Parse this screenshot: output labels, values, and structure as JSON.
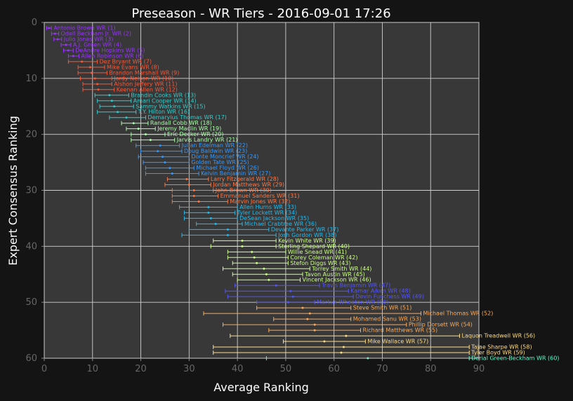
{
  "chart_data": {
    "type": "scatter",
    "title": "Preseason - WR Tiers - 2016-09-01 17:26",
    "xlabel": "Average Ranking",
    "ylabel": "Expert Consensus Ranking",
    "xlim": [
      0,
      90
    ],
    "ylim": [
      60,
      0
    ],
    "xticks": [
      "0",
      "10",
      "20",
      "30",
      "40",
      "50",
      "60",
      "70",
      "80",
      "90"
    ],
    "yticks": [
      "0",
      "10",
      "20",
      "30",
      "40",
      "50",
      "60"
    ],
    "grid": true,
    "tier_colors": {
      "1": "#9933ff",
      "2": "#ff5533",
      "3": "#33cccc",
      "4": "#aaffaa",
      "5": "#3399ff",
      "6": "#ff7744",
      "7": "#22bbee",
      "8": "#ccff88",
      "9": "#5555ff",
      "10": "#ffaa55",
      "11": "#ffdd88",
      "12": "#55ffcc"
    },
    "points": [
      {
        "label": "Antonio Brown WR (1)",
        "tier": 1,
        "x": 1.0,
        "lo": 0.5,
        "hi": 1.5
      },
      {
        "label": "Odell Beckham Jr. WR (2)",
        "tier": 1,
        "x": 2.2,
        "lo": 1.5,
        "hi": 3.0
      },
      {
        "label": "Julio Jones WR (3)",
        "tier": 1,
        "x": 2.8,
        "lo": 2.0,
        "hi": 3.6
      },
      {
        "label": "A.J. Green WR (4)",
        "tier": 1,
        "x": 4.5,
        "lo": 3.5,
        "hi": 5.5
      },
      {
        "label": "DeAndre Hopkins WR (5)",
        "tier": 1,
        "x": 5.0,
        "lo": 4.0,
        "hi": 6.0
      },
      {
        "label": "Allen Robinson WR (6)",
        "tier": 1,
        "x": 6.0,
        "lo": 5.0,
        "hi": 7.2
      },
      {
        "label": "Dez Bryant WR (7)",
        "tier": 2,
        "x": 7.8,
        "lo": 5.0,
        "hi": 11.0
      },
      {
        "label": "Mike Evans WR (8)",
        "tier": 2,
        "x": 9.5,
        "lo": 7.0,
        "hi": 12.5
      },
      {
        "label": "Brandon Marshall WR (9)",
        "tier": 2,
        "x": 9.8,
        "lo": 7.0,
        "hi": 13.0
      },
      {
        "label": "Jordy Nelson WR (10)",
        "tier": 2,
        "x": 10.5,
        "lo": 7.5,
        "hi": 14.0
      },
      {
        "label": "Alshon Jeffery WR (11)",
        "tier": 2,
        "x": 11.0,
        "lo": 8.0,
        "hi": 14.0
      },
      {
        "label": "Keenan Allen WR (12)",
        "tier": 2,
        "x": 11.2,
        "lo": 8.0,
        "hi": 14.5
      },
      {
        "label": "Brandin Cooks WR (13)",
        "tier": 3,
        "x": 13.5,
        "lo": 10.5,
        "hi": 17.5
      },
      {
        "label": "Amari Cooper WR (14)",
        "tier": 3,
        "x": 14.0,
        "lo": 11.0,
        "hi": 18.0
      },
      {
        "label": "Sammy Watkins WR (15)",
        "tier": 3,
        "x": 14.5,
        "lo": 11.5,
        "hi": 18.5
      },
      {
        "label": "T.Y. Hilton WR (16)",
        "tier": 3,
        "x": 15.2,
        "lo": 11.0,
        "hi": 19.0
      },
      {
        "label": "Demaryius Thomas WR (17)",
        "tier": 3,
        "x": 17.0,
        "lo": 13.5,
        "hi": 21.0
      },
      {
        "label": "Randall Cobb WR (18)",
        "tier": 4,
        "x": 18.5,
        "lo": 16.0,
        "hi": 21.5
      },
      {
        "label": "Jeremy Maclin WR (19)",
        "tier": 4,
        "x": 19.5,
        "lo": 17.0,
        "hi": 23.0
      },
      {
        "label": "Eric Decker WR (20)",
        "tier": 4,
        "x": 21.0,
        "lo": 18.0,
        "hi": 25.0
      },
      {
        "label": "Jarvis Landry WR (21)",
        "tier": 4,
        "x": 22.0,
        "lo": 18.0,
        "hi": 27.0
      },
      {
        "label": "Julian Edelman WR (22)",
        "tier": 5,
        "x": 24.0,
        "lo": 19.0,
        "hi": 28.0
      },
      {
        "label": "Doug Baldwin WR (23)",
        "tier": 5,
        "x": 23.5,
        "lo": 20.0,
        "hi": 28.5
      },
      {
        "label": "Donte Moncrief WR (24)",
        "tier": 5,
        "x": 24.5,
        "lo": 19.5,
        "hi": 30.0
      },
      {
        "label": "Golden Tate WR (25)",
        "tier": 5,
        "x": 25.0,
        "lo": 20.5,
        "hi": 30.0
      },
      {
        "label": "Michael Floyd WR (26)",
        "tier": 5,
        "x": 26.0,
        "lo": 21.0,
        "hi": 31.0
      },
      {
        "label": "Kelvin Benjamin WR (27)",
        "tier": 5,
        "x": 26.5,
        "lo": 21.0,
        "hi": 32.0
      },
      {
        "label": "Larry Fitzgerald WR (28)",
        "tier": 6,
        "x": 29.5,
        "lo": 25.5,
        "hi": 34.0
      },
      {
        "label": "Jordan Matthews WR (29)",
        "tier": 6,
        "x": 30.0,
        "lo": 25.0,
        "hi": 34.5
      },
      {
        "label": "John Brown WR (30)",
        "tier": 6,
        "x": 31.0,
        "lo": 26.5,
        "hi": 35.0
      },
      {
        "label": "Emmanuel Sanders WR (31)",
        "tier": 6,
        "x": 31.0,
        "lo": 26.5,
        "hi": 36.0
      },
      {
        "label": "Marvin Jones WR (32)",
        "tier": 6,
        "x": 32.0,
        "lo": 26.5,
        "hi": 38.0
      },
      {
        "label": "Allen Hurns WR (33)",
        "tier": 7,
        "x": 34.0,
        "lo": 28.0,
        "hi": 40.0
      },
      {
        "label": "Tyler Lockett WR (34)",
        "tier": 7,
        "x": 34.0,
        "lo": 29.0,
        "hi": 39.5
      },
      {
        "label": "DeSean Jackson WR (35)",
        "tier": 7,
        "x": 34.5,
        "lo": 29.0,
        "hi": 40.0
      },
      {
        "label": "Michael Crabtree WR (36)",
        "tier": 7,
        "x": 35.5,
        "lo": 31.5,
        "hi": 41.0
      },
      {
        "label": "Devante Parker WR (37)",
        "tier": 7,
        "x": 38.0,
        "lo": 30.0,
        "hi": 46.5
      },
      {
        "label": "Josh Gordon WR (38)",
        "tier": 7,
        "x": 38.0,
        "lo": 28.5,
        "hi": 48.0
      },
      {
        "label": "Kevin White WR (39)",
        "tier": 8,
        "x": 41.0,
        "lo": 35.0,
        "hi": 48.0
      },
      {
        "label": "Sterling Shepard WR (40)",
        "tier": 8,
        "x": 41.0,
        "lo": 34.5,
        "hi": 48.0
      },
      {
        "label": "Willie Snead WR (41)",
        "tier": 8,
        "x": 43.0,
        "lo": 38.0,
        "hi": 50.0
      },
      {
        "label": "Corey Coleman WR (42)",
        "tier": 8,
        "x": 43.5,
        "lo": 38.0,
        "hi": 50.5
      },
      {
        "label": "Stefon Diggs WR (43)",
        "tier": 8,
        "x": 44.0,
        "lo": 39.0,
        "hi": 50.5
      },
      {
        "label": "Torrey Smith WR (44)",
        "tier": 8,
        "x": 45.5,
        "lo": 37.0,
        "hi": 55.0
      },
      {
        "label": "Tavon Austin WR (45)",
        "tier": 8,
        "x": 46.0,
        "lo": 39.0,
        "hi": 53.5
      },
      {
        "label": "Vincent Jackson WR (46)",
        "tier": 8,
        "x": 46.5,
        "lo": 40.0,
        "hi": 53.0
      },
      {
        "label": "Travis Benjamin WR (47)",
        "tier": 9,
        "x": 48.0,
        "lo": 39.5,
        "hi": 57.0
      },
      {
        "label": "Kamar Aiken WR (48)",
        "tier": 9,
        "x": 51.0,
        "lo": 37.5,
        "hi": 63.0
      },
      {
        "label": "Devin Funchess WR (49)",
        "tier": 9,
        "x": 51.5,
        "lo": 38.0,
        "hi": 64.0
      },
      {
        "label": "Markus Wheaton WR (50)",
        "tier": 9,
        "x": 50.5,
        "lo": 44.0,
        "hi": 56.0
      },
      {
        "label": "Steve Smith WR (51)",
        "tier": 10,
        "x": 53.5,
        "lo": 44.0,
        "hi": 63.5
      },
      {
        "label": "Michael Thomas WR (52)",
        "tier": 10,
        "x": 55.0,
        "lo": 33.0,
        "hi": 78.0
      },
      {
        "label": "Mohamed Sanu WR (53)",
        "tier": 10,
        "x": 54.5,
        "lo": 47.5,
        "hi": 63.5
      },
      {
        "label": "Phillip Dorsett WR (54)",
        "tier": 10,
        "x": 56.0,
        "lo": 37.0,
        "hi": 75.0
      },
      {
        "label": "Richard Matthews WR (55)",
        "tier": 10,
        "x": 56.0,
        "lo": 46.5,
        "hi": 65.5
      },
      {
        "label": "Laquon Treadwell WR (56)",
        "tier": 11,
        "x": 62.5,
        "lo": 38.5,
        "hi": 86.0
      },
      {
        "label": "Mike Wallace WR (57)",
        "tier": 11,
        "x": 58.0,
        "lo": 49.5,
        "hi": 66.5
      },
      {
        "label": "Tajae Sharpe WR (58)",
        "tier": 11,
        "x": 62.0,
        "lo": 35.0,
        "hi": 88.0
      },
      {
        "label": "Tyler Boyd WR (59)",
        "tier": 11,
        "x": 61.5,
        "lo": 35.0,
        "hi": 88.0
      },
      {
        "label": "Dorial Green-Beckham WR (60)",
        "tier": 12,
        "x": 67.0,
        "lo": 46.0,
        "hi": 88.0
      }
    ]
  }
}
